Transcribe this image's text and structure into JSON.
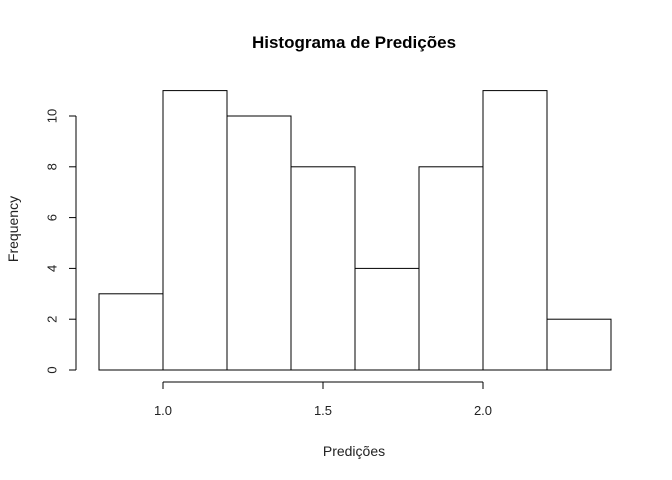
{
  "chart_data": {
    "type": "bar",
    "subtype": "histogram",
    "title": "Histograma de Predições",
    "xlabel": "Predições",
    "ylabel": "Frequency",
    "bins": [
      {
        "start": 0.8,
        "end": 1.0,
        "count": 3
      },
      {
        "start": 1.0,
        "end": 1.2,
        "count": 11
      },
      {
        "start": 1.2,
        "end": 1.4,
        "count": 10
      },
      {
        "start": 1.4,
        "end": 1.6,
        "count": 8
      },
      {
        "start": 1.6,
        "end": 1.8,
        "count": 4
      },
      {
        "start": 1.8,
        "end": 2.0,
        "count": 8
      },
      {
        "start": 2.0,
        "end": 2.2,
        "count": 11
      },
      {
        "start": 2.2,
        "end": 2.4,
        "count": 2
      }
    ],
    "xlim": [
      0.8,
      2.4
    ],
    "ylim": [
      0,
      11
    ],
    "x_ticks": [
      {
        "value": 1.0,
        "label": "1.0"
      },
      {
        "value": 1.5,
        "label": "1.5"
      },
      {
        "value": 2.0,
        "label": "2.0"
      }
    ],
    "y_ticks": [
      {
        "value": 0,
        "label": "0"
      },
      {
        "value": 2,
        "label": "2"
      },
      {
        "value": 4,
        "label": "4"
      },
      {
        "value": 6,
        "label": "6"
      },
      {
        "value": 8,
        "label": "8"
      },
      {
        "value": 10,
        "label": "10"
      }
    ],
    "grid": false,
    "colors": {
      "bar_fill": "#ffffff",
      "bar_edge": "#000000"
    }
  }
}
